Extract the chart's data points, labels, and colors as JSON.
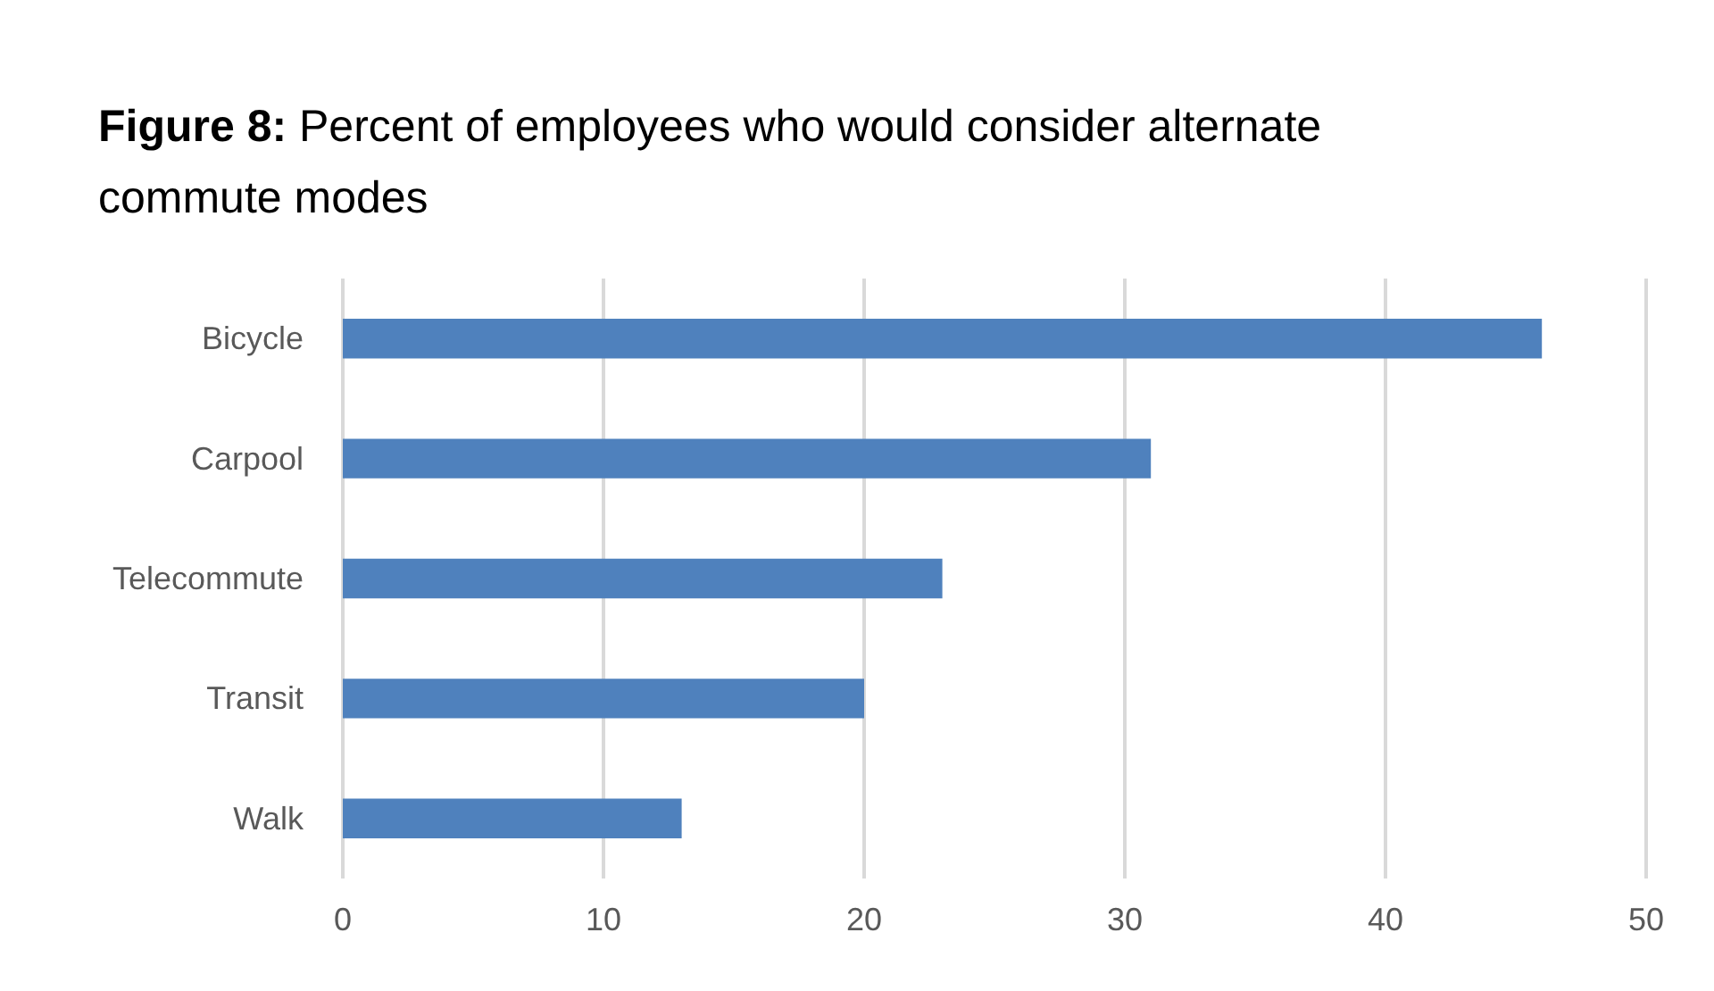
{
  "chart_data": {
    "type": "bar",
    "title": "Figure 8: Percent of employees who would consider alternate commute modes",
    "orientation": "horizontal",
    "categories": [
      "Bicycle",
      "Carpool",
      "Telecommute",
      "Transit",
      "Walk"
    ],
    "values": [
      46,
      31,
      23,
      20,
      13
    ],
    "color": "#4f81bd",
    "xlim": [
      0,
      50
    ],
    "xticks": [
      0,
      10,
      20,
      30,
      40,
      50
    ],
    "grid": "x"
  }
}
